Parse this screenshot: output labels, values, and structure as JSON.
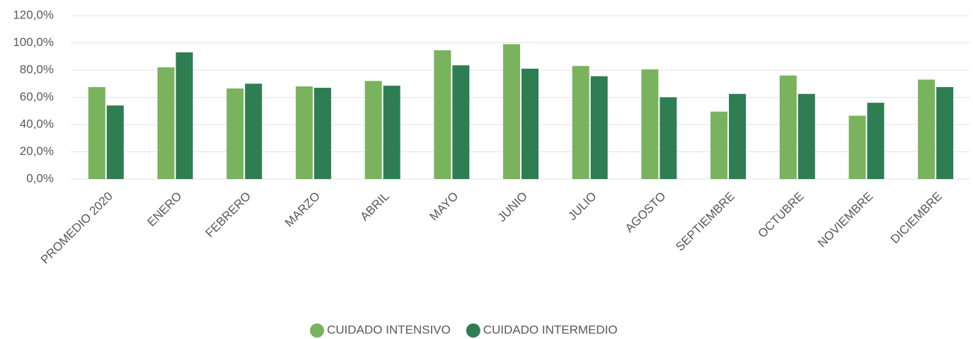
{
  "chart_data": {
    "type": "bar",
    "categories": [
      "PROMEDIO 2020",
      "ENERO",
      "FEBRERO",
      "MARZO",
      "ABRIL",
      "MAYO",
      "JUNIO",
      "JULIO",
      "AGOSTO",
      "SEPTIEMBRE",
      "OCTUBRE",
      "NOVIEMBRE",
      "DICIEMBRE"
    ],
    "series": [
      {
        "name": "CUIDADO INTENSIVO",
        "color": "#79b35e",
        "values": [
          67.5,
          82,
          66.5,
          68,
          72,
          94.5,
          99,
          83,
          80.5,
          49.5,
          76,
          46.5,
          73
        ]
      },
      {
        "name": "CUIDADO INTERMEDIO",
        "color": "#2f7d53",
        "values": [
          54,
          93,
          70,
          67,
          68.5,
          83.5,
          81,
          75.5,
          60,
          62.5,
          62.5,
          56,
          67.5
        ]
      }
    ],
    "ylim": [
      0,
      120
    ],
    "yticks": [
      {
        "value": 0,
        "label": "0,0%"
      },
      {
        "value": 20,
        "label": "20,0%"
      },
      {
        "value": 40,
        "label": "40,0%"
      },
      {
        "value": 60,
        "label": "60,0%"
      },
      {
        "value": 80,
        "label": "80,0%"
      },
      {
        "value": 100,
        "label": "100,0%"
      },
      {
        "value": 120,
        "label": "120,0%"
      }
    ],
    "grid": true,
    "legend": "bottom"
  }
}
